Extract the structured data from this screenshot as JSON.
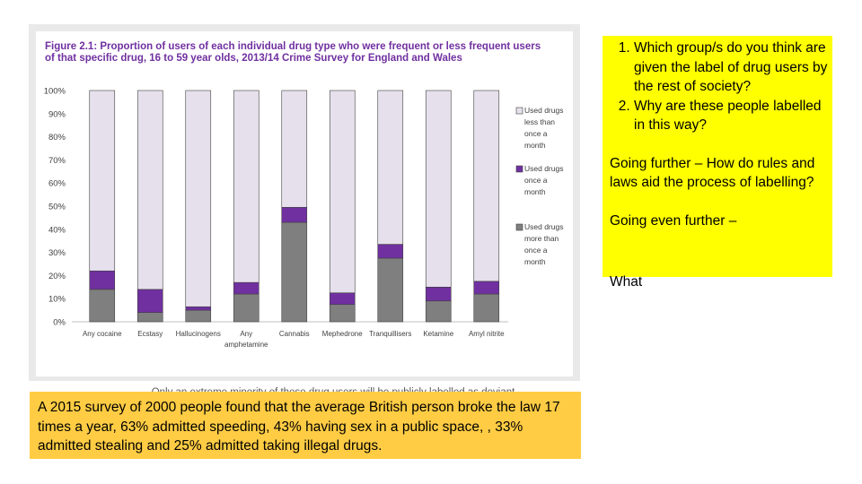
{
  "figure": {
    "caption": "Only an extreme minority of these drug users will be publicly labelled as deviant"
  },
  "chart_data": {
    "type": "bar",
    "stacked": true,
    "title": "Figure 2.1: Proportion of users of each individual drug type who were frequent or less frequent users of that specific drug, 16 to 59 year olds, 2013/14 Crime Survey for England and Wales",
    "categories": [
      "Any cocaine",
      "Ecstasy",
      "Hallucinogens",
      "Any amphetamine",
      "Cannabis",
      "Mephedrone",
      "Tranquillisers",
      "Ketamine",
      "Amyl nitrite"
    ],
    "category_lines": [
      [
        "Any cocaine"
      ],
      [
        "Ecstasy"
      ],
      [
        "Hallucinogens"
      ],
      [
        "Any",
        "amphetamine"
      ],
      [
        "Cannabis"
      ],
      [
        "Mephedrone"
      ],
      [
        "Tranquillisers"
      ],
      [
        "Ketamine"
      ],
      [
        "Amyl nitrite"
      ]
    ],
    "y_ticks": [
      "0%",
      "10%",
      "20%",
      "30%",
      "40%",
      "50%",
      "60%",
      "70%",
      "80%",
      "90%",
      "100%"
    ],
    "ylim": [
      0,
      100
    ],
    "grid": false,
    "legend_position": "right",
    "series": [
      {
        "name": "Used drugs more than once a month",
        "legend_lines": [
          "Used drugs",
          "more than",
          "once a",
          "month"
        ],
        "color": "#7f7f7f",
        "values": [
          14,
          4,
          5,
          12,
          43,
          7.5,
          27.5,
          9,
          12
        ]
      },
      {
        "name": "Used drugs once a month",
        "legend_lines": [
          "Used drugs",
          "once a",
          "month"
        ],
        "color": "#7030a0",
        "values": [
          8,
          10,
          1.5,
          5,
          6.5,
          5,
          6,
          6,
          5.5
        ]
      },
      {
        "name": "Used drugs less than once a month",
        "legend_lines": [
          "Used drugs",
          "less than",
          "once a",
          "month"
        ],
        "color": "#e6e0ec",
        "values": [
          78,
          86,
          93.5,
          83,
          50.5,
          87.5,
          66.5,
          85,
          82.5
        ]
      }
    ]
  },
  "questions": {
    "items": [
      "Which group/s do you think are given the label of drug users by the rest of society?",
      "Why are these people labelled in this way?"
    ],
    "further": "Going further – How do rules and laws aid the process of labelling?",
    "even_further": "Going even further –",
    "overflow": "What"
  },
  "survey": {
    "text": "A 2015 survey of 2000 people found that the average British person broke the law 17 times a year, 63% admitted speeding, 43% having sex in a public space, , 33% admitted stealing and 25% admitted taking illegal drugs."
  }
}
